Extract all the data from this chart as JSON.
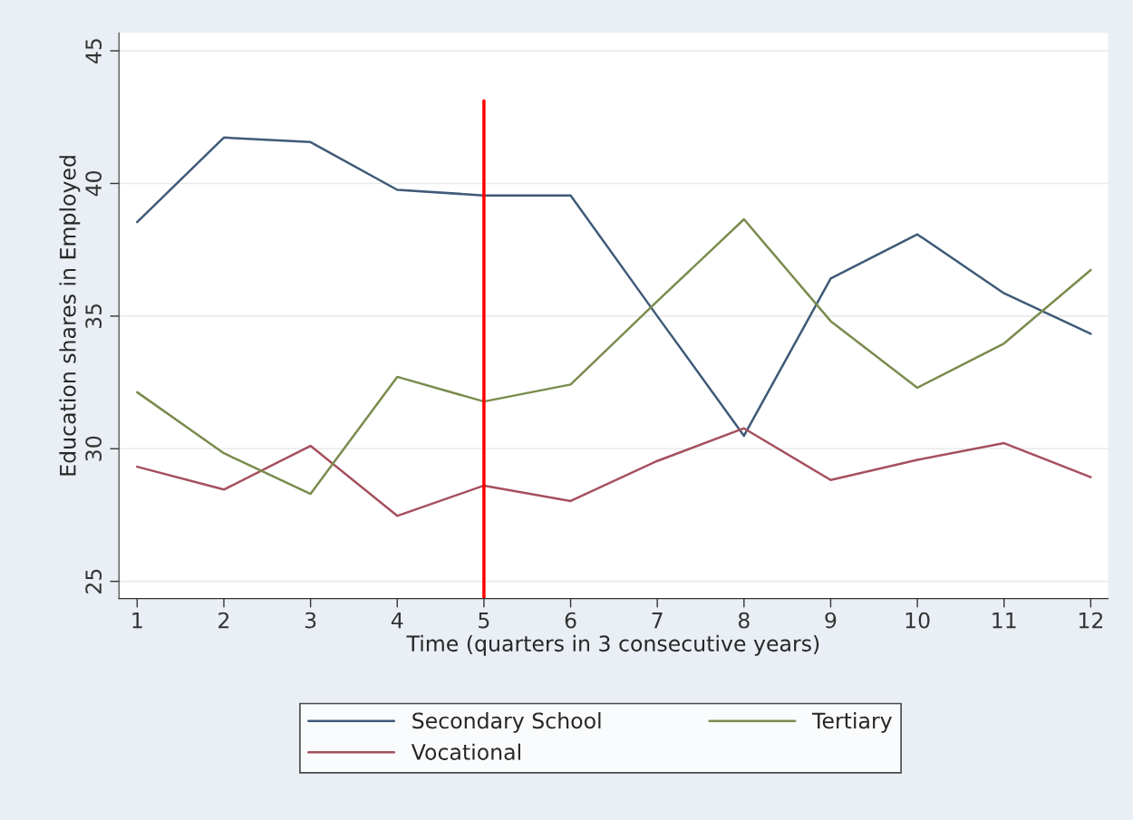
{
  "chart_data": {
    "type": "line",
    "xlabel": "Time (quarters in 3 consecutive years)",
    "ylabel": "Education shares in Employed",
    "x": [
      1,
      2,
      3,
      4,
      5,
      6,
      7,
      8,
      9,
      10,
      11,
      12
    ],
    "series": [
      {
        "name": "Secondary School",
        "color": "#3f5a78",
        "values": [
          38.54,
          41.73,
          41.56,
          39.76,
          39.55,
          39.55,
          35.0,
          30.49,
          36.42,
          38.08,
          35.86,
          34.33
        ]
      },
      {
        "name": "Vocational",
        "color": "#a5505e",
        "values": [
          29.32,
          28.46,
          30.11,
          27.47,
          28.61,
          28.03,
          29.54,
          30.77,
          28.82,
          29.58,
          30.21,
          28.93
        ]
      },
      {
        "name": "Tertiary",
        "color": "#7a8c4e",
        "values": [
          32.13,
          29.83,
          28.3,
          32.71,
          31.78,
          32.42,
          35.56,
          38.65,
          34.81,
          32.3,
          33.97,
          36.74
        ]
      }
    ],
    "xlim": [
      0.79,
      12.2
    ],
    "xticks": [
      1,
      2,
      3,
      4,
      5,
      6,
      7,
      8,
      9,
      10,
      11,
      12
    ],
    "ylim": [
      24.35,
      45.68
    ],
    "yticks": [
      25,
      30,
      35,
      40,
      45
    ],
    "ref_lines": [
      {
        "axis": "x",
        "value": 5,
        "color": "#ff0000"
      }
    ],
    "grid": "y",
    "legend": "bottom",
    "marker": "none",
    "line_style": "solid"
  }
}
